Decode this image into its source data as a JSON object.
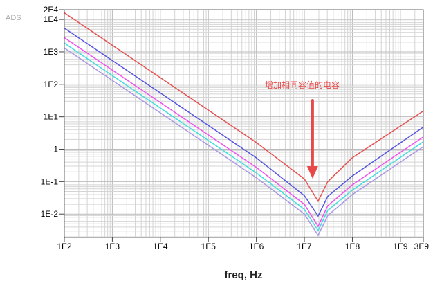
{
  "chart_data": {
    "type": "line",
    "watermark": "ADS",
    "xlabel": "freq, Hz",
    "ylabel": "",
    "xscale": "log",
    "yscale": "log",
    "xlim": [
      100,
      3000000000
    ],
    "ylim": [
      0.0019,
      20000
    ],
    "grid": true,
    "x_ticks": [
      {
        "v": 100,
        "label": "1E2"
      },
      {
        "v": 1000,
        "label": "1E3"
      },
      {
        "v": 10000,
        "label": "1E4"
      },
      {
        "v": 100000,
        "label": "1E5"
      },
      {
        "v": 1000000,
        "label": "1E6"
      },
      {
        "v": 10000000,
        "label": "1E7"
      },
      {
        "v": 100000000,
        "label": "1E8"
      },
      {
        "v": 1000000000,
        "label": "1E9"
      },
      {
        "v": 3000000000,
        "label": "3E9"
      }
    ],
    "y_ticks": [
      {
        "v": 20000,
        "label": "2E4"
      },
      {
        "v": 10000,
        "label": "1E4"
      },
      {
        "v": 1000,
        "label": "1E3"
      },
      {
        "v": 100,
        "label": "1E2"
      },
      {
        "v": 10,
        "label": "1E1"
      },
      {
        "v": 1,
        "label": "1"
      },
      {
        "v": 0.1,
        "label": "1E-1"
      },
      {
        "v": 0.01,
        "label": "1E-2"
      }
    ],
    "x": [
      100,
      1000000,
      10000000,
      19300000,
      30600000,
      100000000,
      3000000000
    ],
    "series": [
      {
        "color": "#e85050",
        "values": [
          16000,
          1.6,
          0.12,
          0.025,
          0.1,
          0.55,
          15
        ]
      },
      {
        "color": "#5555e0",
        "values": [
          5400,
          0.54,
          0.037,
          0.0087,
          0.035,
          0.15,
          4.8
        ]
      },
      {
        "color": "#f050f0",
        "values": [
          2750,
          0.275,
          0.02,
          0.0042,
          0.018,
          0.08,
          2.4
        ]
      },
      {
        "color": "#40dede",
        "values": [
          1860,
          0.186,
          0.014,
          0.0031,
          0.013,
          0.055,
          1.7
        ]
      },
      {
        "color": "#a898e4",
        "values": [
          1320,
          0.132,
          0.01,
          0.0022,
          0.009,
          0.04,
          1.2
        ]
      }
    ],
    "annotation": {
      "text": "增加相同容值的电容",
      "color": "#e84848",
      "arrow_at_x": 19300000
    }
  }
}
